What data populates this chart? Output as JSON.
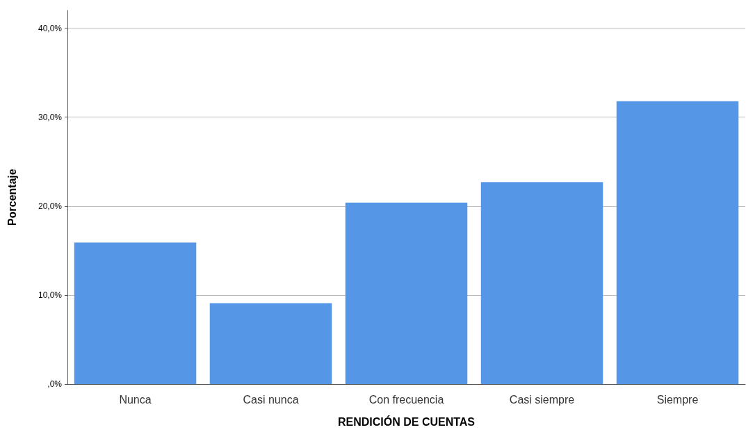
{
  "chart_data": {
    "type": "bar",
    "xlabel": "RENDICIÓN DE CUENTAS",
    "ylabel": "Porcentaje",
    "categories": [
      "Nunca",
      "Casi nunca",
      "Con frecuencia",
      "Casi siempre",
      "Siempre"
    ],
    "values": [
      15.9,
      9.1,
      20.4,
      22.7,
      31.8
    ],
    "color": "#5596e6",
    "ylim": [
      0,
      42
    ],
    "yticks": [
      {
        "value": 0,
        "label": ",0%"
      },
      {
        "value": 10,
        "label": "10,0%"
      },
      {
        "value": 20,
        "label": "20,0%"
      },
      {
        "value": 30,
        "label": "30,0%"
      },
      {
        "value": 40,
        "label": "40,0%"
      }
    ],
    "grid": "y"
  }
}
